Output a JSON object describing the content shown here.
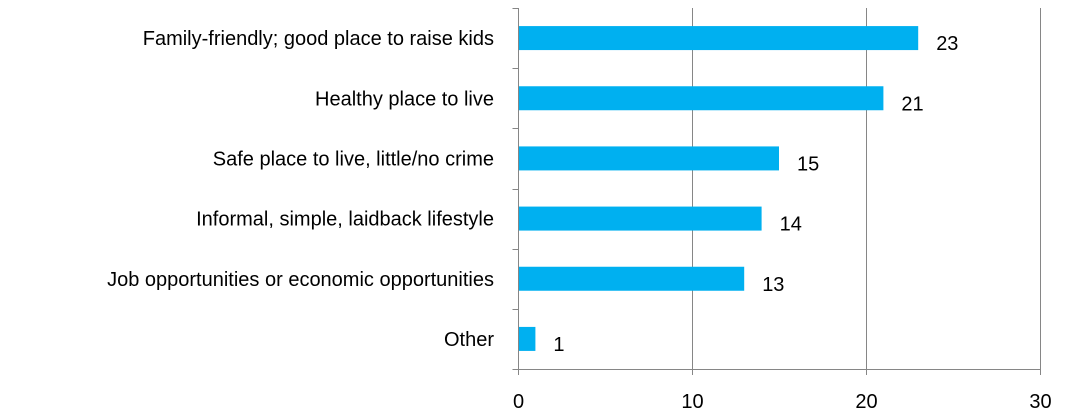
{
  "chart_data": {
    "type": "bar",
    "orientation": "horizontal",
    "categories": [
      "Family-friendly; good place to raise kids",
      "Healthy place to live",
      "Safe place to live, little/no crime",
      "Informal, simple, laidback lifestyle",
      "Job opportunities or economic opportunities",
      "Other"
    ],
    "values": [
      23,
      21,
      15,
      14,
      13,
      1
    ],
    "xlim": [
      0,
      30
    ],
    "xticks": [
      0,
      10,
      20,
      30
    ],
    "tick_labels": [
      "0",
      "10",
      "20",
      "30"
    ],
    "value_labels": [
      "23",
      "21",
      "15",
      "14",
      "13",
      "1"
    ],
    "grid": true,
    "legend": "none",
    "title": "",
    "xlabel": "",
    "ylabel": "",
    "colors": {
      "bar": "#00B0F0",
      "gridline": "#868686",
      "axis": "#868686",
      "text": "#000000"
    }
  }
}
